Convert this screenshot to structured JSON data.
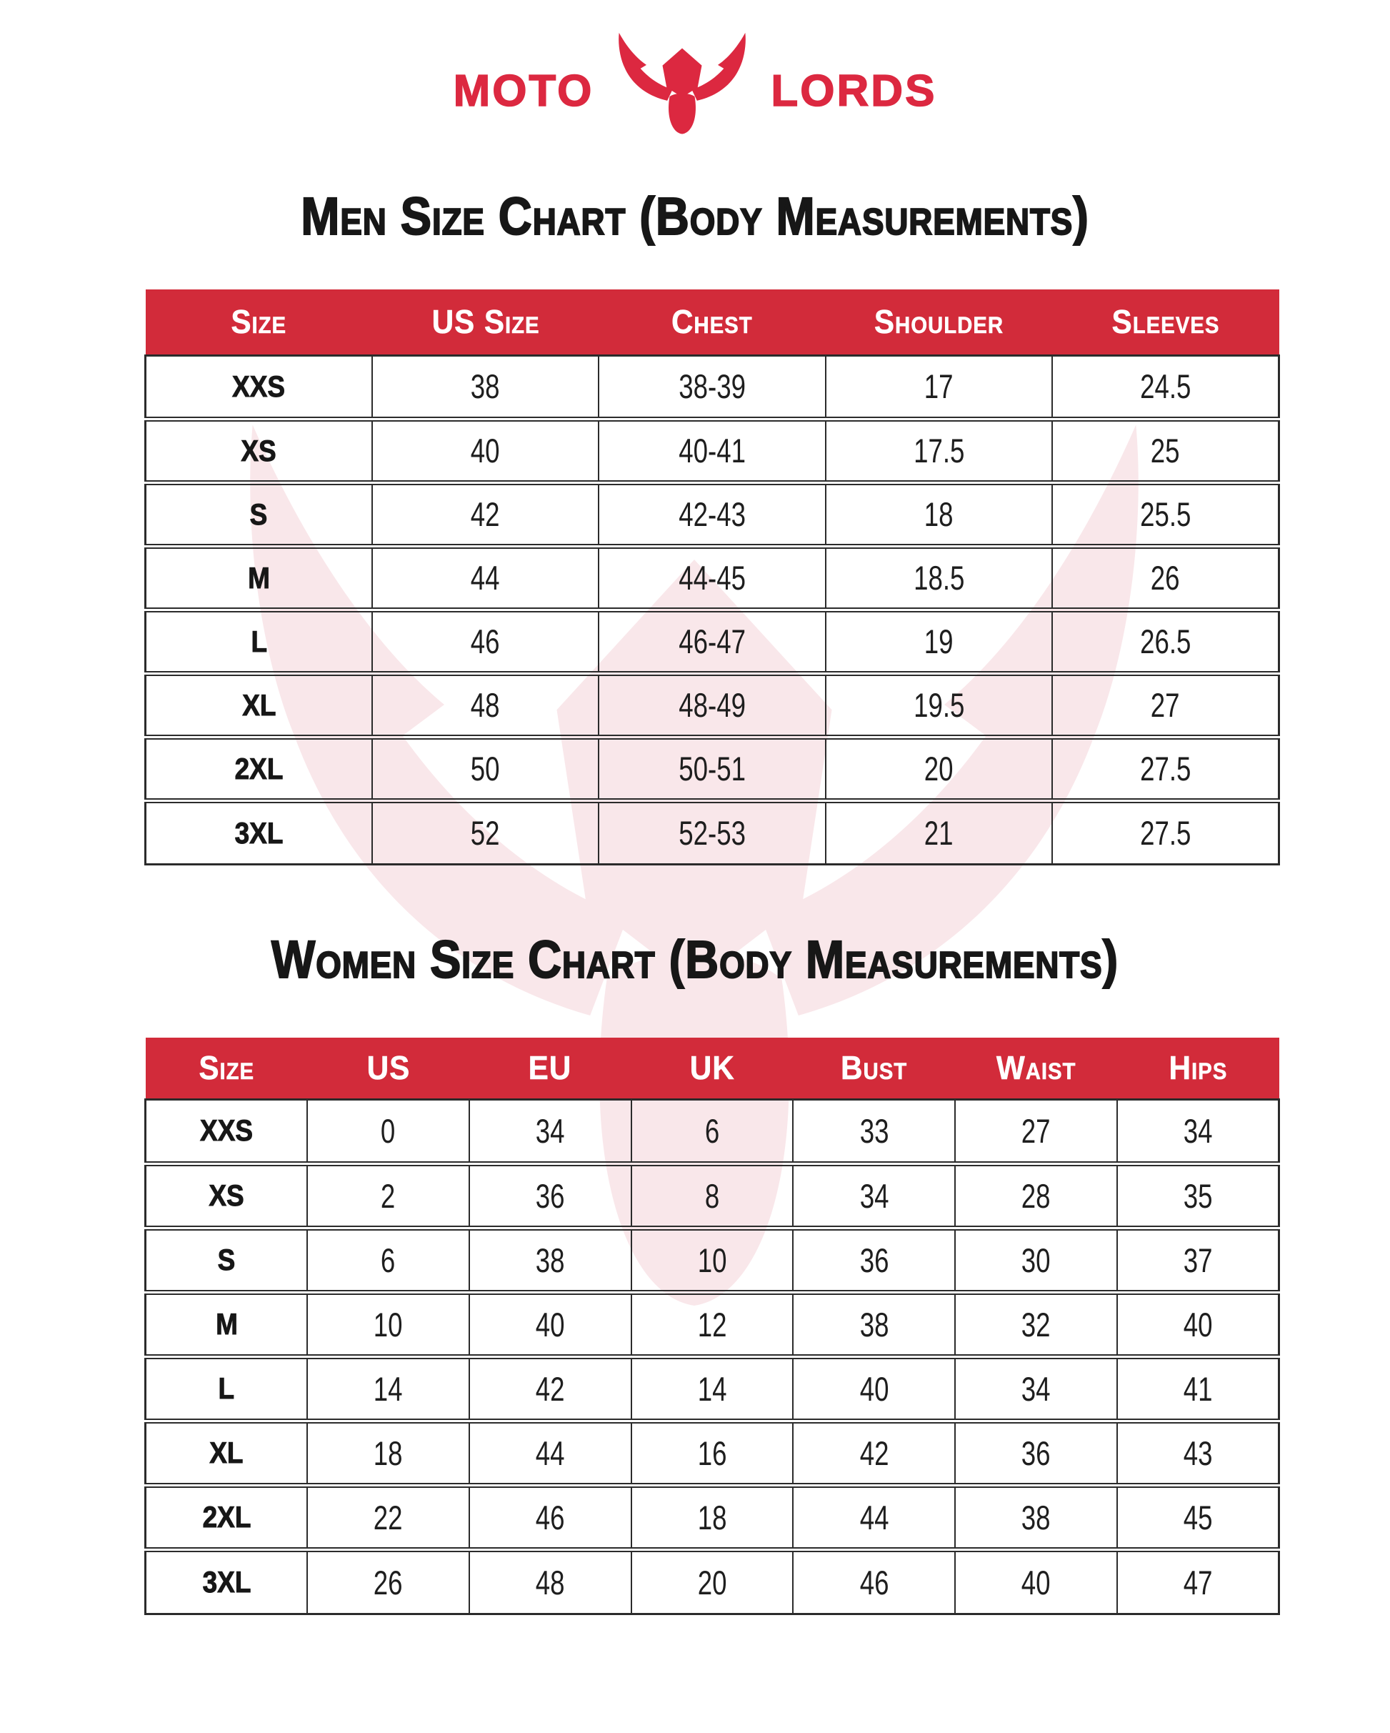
{
  "logo": {
    "word_left": "MOTO",
    "word_right": "LORDS",
    "icon": "bull-head-icon"
  },
  "men_chart": {
    "title": "Men Size Chart (Body Measurements)",
    "columns": [
      "Size",
      "US Size",
      "Chest",
      "Shoulder",
      "Sleeves"
    ],
    "rows": [
      [
        "XXS",
        "38",
        "38-39",
        "17",
        "24.5"
      ],
      [
        "XS",
        "40",
        "40-41",
        "17.5",
        "25"
      ],
      [
        "S",
        "42",
        "42-43",
        "18",
        "25.5"
      ],
      [
        "M",
        "44",
        "44-45",
        "18.5",
        "26"
      ],
      [
        "L",
        "46",
        "46-47",
        "19",
        "26.5"
      ],
      [
        "XL",
        "48",
        "48-49",
        "19.5",
        "27"
      ],
      [
        "2XL",
        "50",
        "50-51",
        "20",
        "27.5"
      ],
      [
        "3XL",
        "52",
        "52-53",
        "21",
        "27.5"
      ]
    ]
  },
  "women_chart": {
    "title": "Women Size Chart (Body Measurements)",
    "columns": [
      "Size",
      "US",
      "EU",
      "UK",
      "Bust",
      "Waist",
      "Hips"
    ],
    "rows": [
      [
        "XXS",
        "0",
        "34",
        "6",
        "33",
        "27",
        "34"
      ],
      [
        "XS",
        "2",
        "36",
        "8",
        "34",
        "28",
        "35"
      ],
      [
        "S",
        "6",
        "38",
        "10",
        "36",
        "30",
        "37"
      ],
      [
        "M",
        "10",
        "40",
        "12",
        "38",
        "32",
        "40"
      ],
      [
        "L",
        "14",
        "42",
        "14",
        "40",
        "34",
        "41"
      ],
      [
        "XL",
        "18",
        "44",
        "16",
        "42",
        "36",
        "43"
      ],
      [
        "2XL",
        "22",
        "46",
        "18",
        "44",
        "38",
        "45"
      ],
      [
        "3XL",
        "26",
        "48",
        "20",
        "46",
        "40",
        "47"
      ]
    ]
  },
  "colors": {
    "brand_red": "#dc2840",
    "header_red": "#d22b3a",
    "watermark_pink": "#f9e7ea",
    "text_dark": "#1d1d1f",
    "border_dark": "#2b2b2b"
  }
}
